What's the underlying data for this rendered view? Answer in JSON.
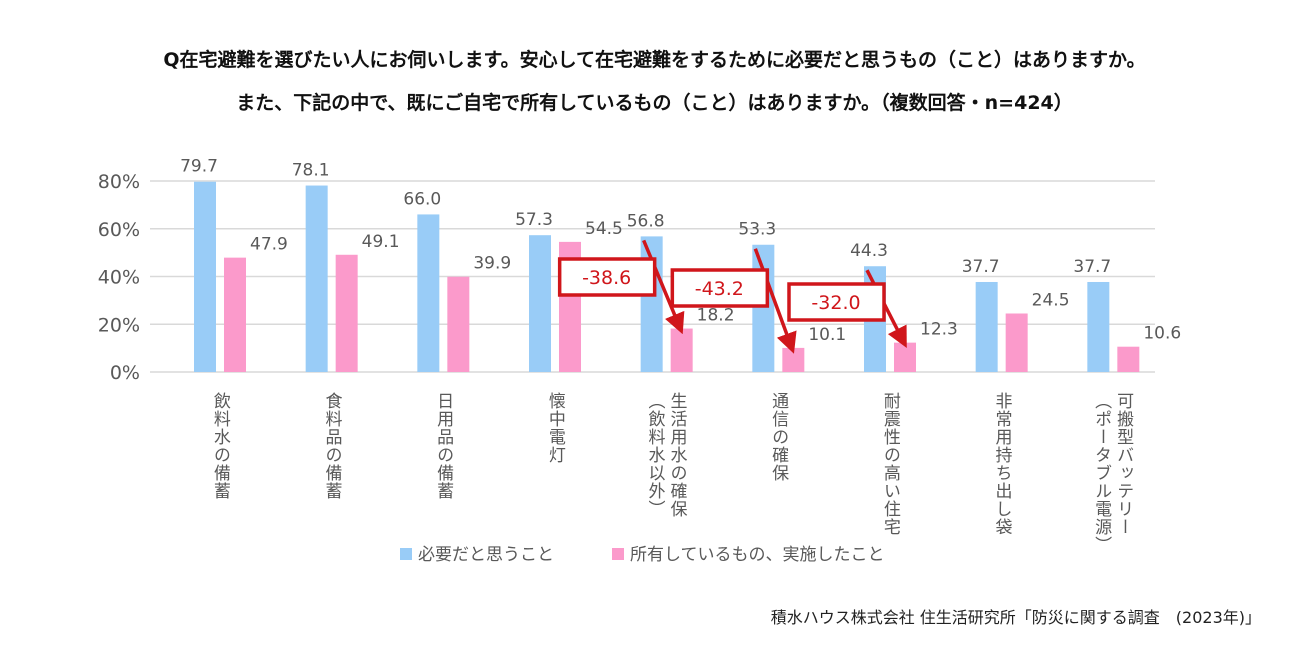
{
  "title_line1": "Q在宅避難を選びたい人にお伺いします。安心して在宅避難をするために必要だと思うもの（こと）はありますか。",
  "title_line2": "また、下記の中で、既にご自宅で所有しているもの（こと）はありますか。（複数回答・n=424）",
  "source": "積水ハウス株式会社 住生活研究所「防災に関する調査　(2023年)」",
  "chart_data": {
    "type": "bar",
    "categories": [
      [
        "飲料水の備蓄"
      ],
      [
        "食料品の備蓄"
      ],
      [
        "日用品の備蓄"
      ],
      [
        "懐中電灯"
      ],
      [
        "生活用水の確保",
        "（飲料水以外）"
      ],
      [
        "通信の確保"
      ],
      [
        "耐震性の高い住宅"
      ],
      [
        "非常用持ち出し袋"
      ],
      [
        "可搬型バッテリー",
        "（ポータブル電源）"
      ]
    ],
    "series": [
      {
        "name": "必要だと思うこと",
        "color": "#99ccf7",
        "values": [
          79.7,
          78.1,
          66.0,
          57.3,
          56.8,
          53.3,
          44.3,
          37.7,
          37.7
        ]
      },
      {
        "name": "所有しているもの、実施したこと",
        "color": "#fb9acb",
        "values": [
          47.9,
          49.1,
          39.9,
          54.5,
          18.2,
          10.1,
          12.3,
          24.5,
          10.6
        ]
      }
    ],
    "ylim": [
      0,
      80
    ],
    "yticks": [
      "0%",
      "20%",
      "40%",
      "60%",
      "80%"
    ],
    "grid": true,
    "legend": "bottom",
    "annotations": [
      {
        "category_index": 4,
        "text": "-38.6"
      },
      {
        "category_index": 5,
        "text": "-43.2"
      },
      {
        "category_index": 6,
        "text": "-32.0"
      }
    ],
    "annotation_color": "#d0161b"
  }
}
